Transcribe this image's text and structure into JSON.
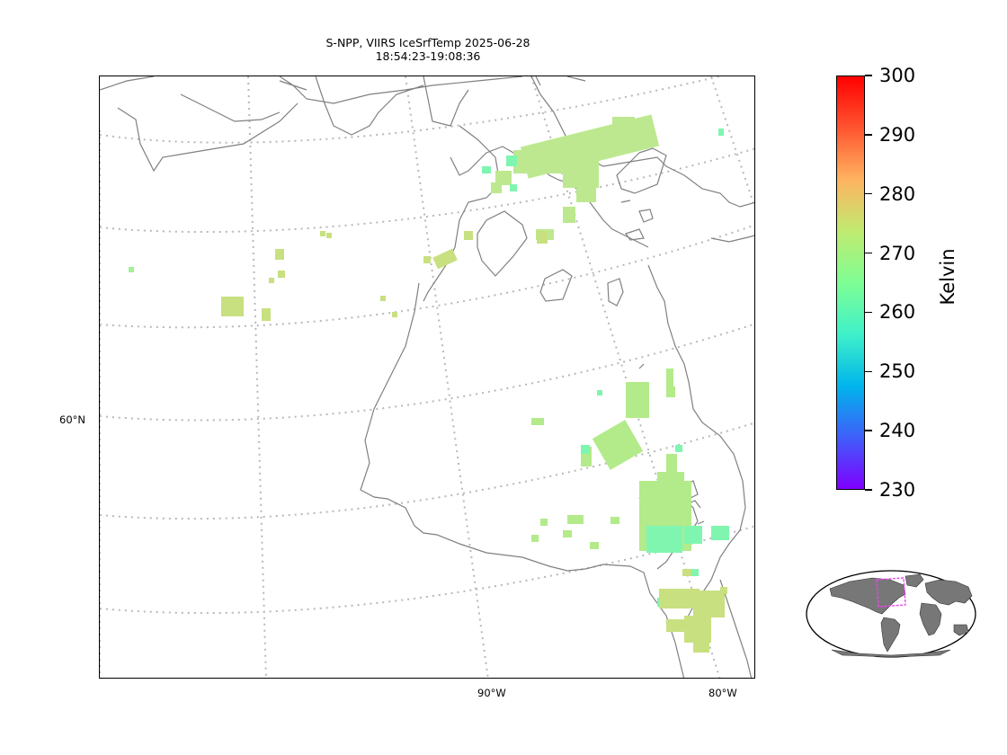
{
  "title": {
    "line1": "S-NPP, VIIRS IceSrfTemp 2025-06-28",
    "line2": "18:54:23-19:08:36"
  },
  "map": {
    "lat_labels": [
      "60°N"
    ],
    "lon_labels": [
      "90°W",
      "80°W"
    ],
    "coastline_color": "#808080",
    "gridline_color": "#b8b8b8"
  },
  "colorbar": {
    "label": "Kelvin",
    "min": 230,
    "max": 300,
    "ticks": [
      "300",
      "290",
      "280",
      "270",
      "260",
      "250",
      "240",
      "230"
    ],
    "colormap": "rainbow",
    "colors": [
      "#7f00ff",
      "#3f5ffa",
      "#00b5eb",
      "#3ff1c9",
      "#7ffe94",
      "#c0eb70",
      "#ffb360",
      "#ff5530",
      "#ff0000"
    ]
  },
  "inset_globe": {
    "projection": "Robinson",
    "land_color": "#777777",
    "region_box_color": "#ee44ee"
  },
  "swath": {
    "typical_temperature_K": 270,
    "colors": [
      "#bde890",
      "#b3ea8a",
      "#a4f097",
      "#7ff5b0",
      "#c8e080"
    ]
  }
}
